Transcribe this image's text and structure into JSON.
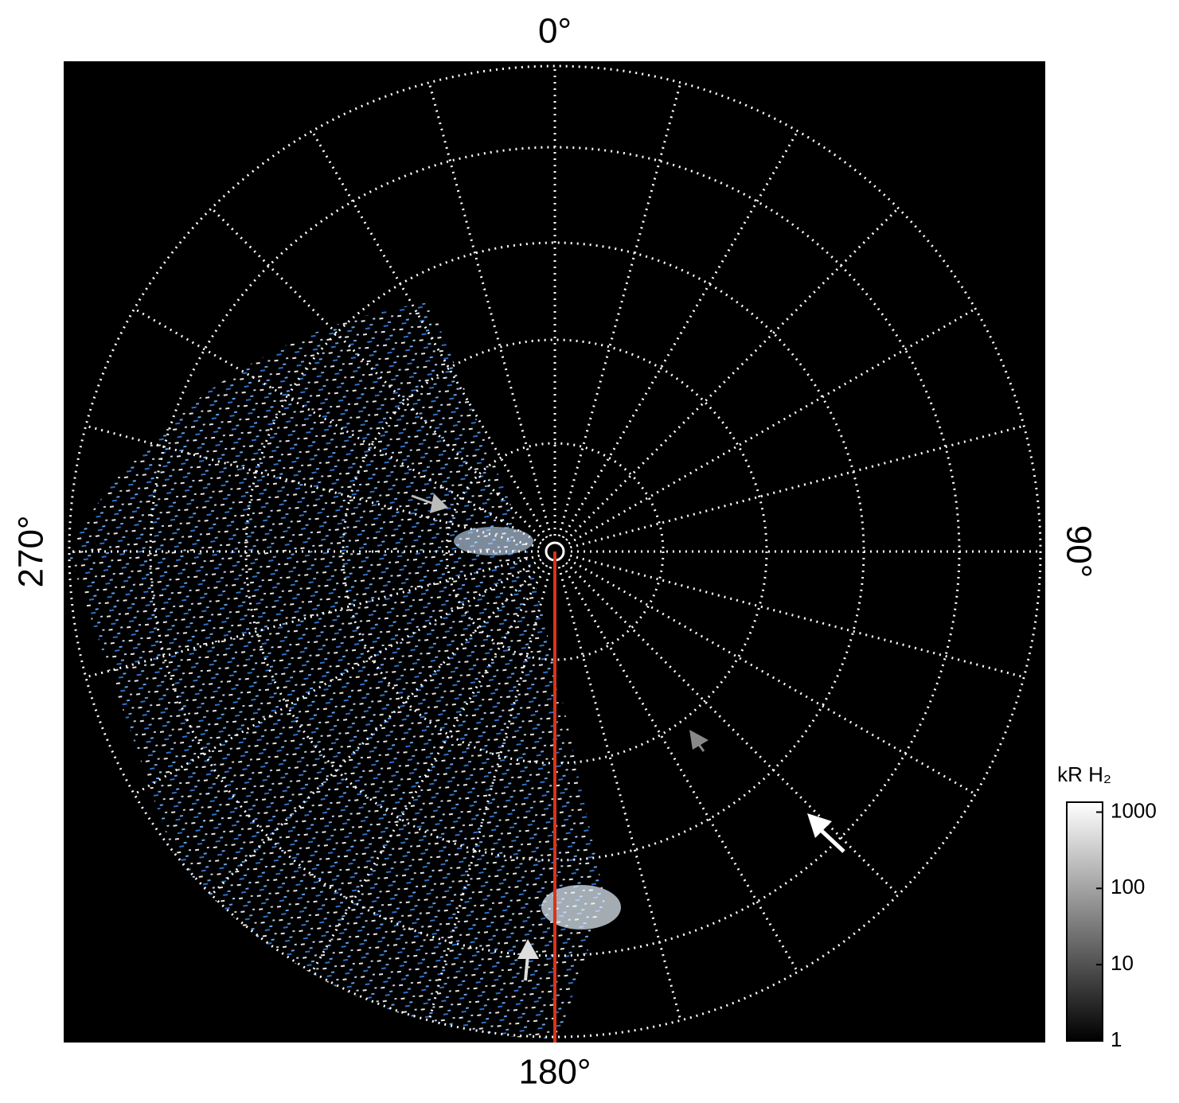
{
  "plot": {
    "labels": {
      "top": "0°",
      "right": "90°",
      "bottom": "180°",
      "left": "270°"
    },
    "colorbar": {
      "title": "kR H₂",
      "ticks": [
        1,
        10,
        100,
        1000
      ],
      "lim": [
        1,
        1350
      ],
      "log": true
    }
  }
}
